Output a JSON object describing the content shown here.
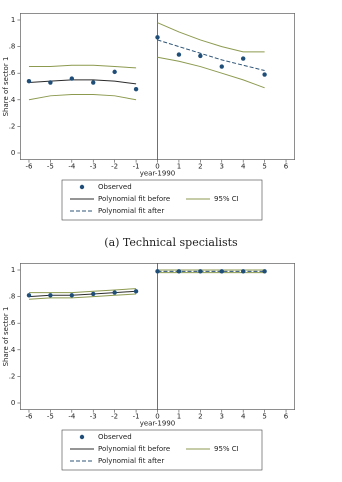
{
  "chart_data": [
    {
      "type": "line",
      "caption": "(a) Technical specialists",
      "xlabel": "year-1990",
      "ylabel": "Share of sector 1",
      "xlim": [
        -6.4,
        6.4
      ],
      "xticks": [
        -6,
        -5,
        -4,
        -3,
        -2,
        -1,
        0,
        1,
        2,
        3,
        4,
        5,
        6
      ],
      "ylim": [
        -0.05,
        1.05
      ],
      "yticks": [
        0,
        {
          "value": 0.2,
          "label": ".2"
        },
        {
          "value": 0.4,
          "label": ".4"
        },
        {
          "value": 0.6,
          "label": ".6"
        },
        {
          "value": 0.8,
          "label": ".8"
        },
        1
      ],
      "grid": false,
      "vline": {
        "x": 0,
        "color": "#d0303a"
      },
      "observed": {
        "name": "Observed",
        "color": "#1f4e79",
        "x": [
          -6,
          -5,
          -4,
          -3,
          -2,
          -1,
          0,
          1,
          2,
          3,
          4,
          5
        ],
        "values": [
          0.54,
          0.53,
          0.56,
          0.53,
          0.61,
          0.48,
          0.87,
          0.74,
          0.73,
          0.65,
          0.71,
          0.59
        ]
      },
      "fit_before": {
        "name": "Polynomial fit before",
        "color": "#2b2b2b",
        "x": [
          -6,
          -5,
          -4,
          -3,
          -2,
          -1
        ],
        "values": [
          0.53,
          0.54,
          0.55,
          0.55,
          0.54,
          0.52
        ]
      },
      "fit_after": {
        "name": "Polynomial fit after",
        "color": "#2e5577",
        "dashed": true,
        "x": [
          0,
          1,
          2,
          3,
          4,
          5
        ],
        "values": [
          0.85,
          0.8,
          0.75,
          0.7,
          0.66,
          0.62
        ]
      },
      "ci": {
        "name": "95% CI",
        "color": "#8c9a4f",
        "before": {
          "x": [
            -6,
            -5,
            -4,
            -3,
            -2,
            -1
          ],
          "upper": [
            0.65,
            0.65,
            0.66,
            0.66,
            0.65,
            0.64
          ],
          "lower": [
            0.4,
            0.43,
            0.44,
            0.44,
            0.43,
            0.4
          ]
        },
        "after": {
          "x": [
            0,
            1,
            2,
            3,
            4,
            5
          ],
          "upper": [
            0.98,
            0.91,
            0.85,
            0.8,
            0.76,
            0.76
          ],
          "lower": [
            0.72,
            0.69,
            0.65,
            0.6,
            0.55,
            0.49
          ]
        }
      }
    },
    {
      "type": "line",
      "xlabel": "year-1990",
      "ylabel": "Share of sector 1",
      "xlim": [
        -6.4,
        6.4
      ],
      "xticks": [
        -6,
        -5,
        -4,
        -3,
        -2,
        -1,
        0,
        1,
        2,
        3,
        4,
        5,
        6
      ],
      "ylim": [
        -0.05,
        1.05
      ],
      "yticks": [
        0,
        {
          "value": 0.2,
          "label": ".2"
        },
        {
          "value": 0.4,
          "label": ".4"
        },
        {
          "value": 0.6,
          "label": ".6"
        },
        {
          "value": 0.8,
          "label": ".8"
        },
        1
      ],
      "grid": false,
      "vline": {
        "x": 0,
        "color": "#d0303a"
      },
      "observed": {
        "name": "Observed",
        "color": "#1f4e79",
        "x": [
          -6,
          -5,
          -4,
          -3,
          -2,
          -1,
          0,
          1,
          2,
          3,
          4,
          5
        ],
        "values": [
          0.81,
          0.81,
          0.81,
          0.82,
          0.83,
          0.84,
          0.99,
          0.99,
          0.99,
          0.99,
          0.99,
          0.99
        ]
      },
      "fit_before": {
        "name": "Polynomial fit before",
        "color": "#2b2b2b",
        "x": [
          -6,
          -5,
          -4,
          -3,
          -2,
          -1
        ],
        "values": [
          0.8,
          0.81,
          0.81,
          0.82,
          0.83,
          0.84
        ]
      },
      "fit_after": {
        "name": "Polynomial fit after",
        "color": "#2e5577",
        "dashed": true,
        "x": [
          0,
          1,
          2,
          3,
          4,
          5
        ],
        "values": [
          0.99,
          0.99,
          0.99,
          0.99,
          0.99,
          0.99
        ]
      },
      "ci": {
        "name": "95% CI",
        "color": "#8c9a4f",
        "before": {
          "x": [
            -6,
            -5,
            -4,
            -3,
            -2,
            -1
          ],
          "upper": [
            0.83,
            0.83,
            0.83,
            0.84,
            0.85,
            0.86
          ],
          "lower": [
            0.78,
            0.79,
            0.79,
            0.8,
            0.81,
            0.82
          ]
        },
        "after": {
          "x": [
            0,
            1,
            2,
            3,
            4,
            5
          ],
          "upper": [
            1.0,
            1.0,
            1.0,
            1.0,
            1.0,
            1.0
          ],
          "lower": [
            0.98,
            0.98,
            0.98,
            0.98,
            0.98,
            0.98
          ]
        }
      }
    }
  ]
}
